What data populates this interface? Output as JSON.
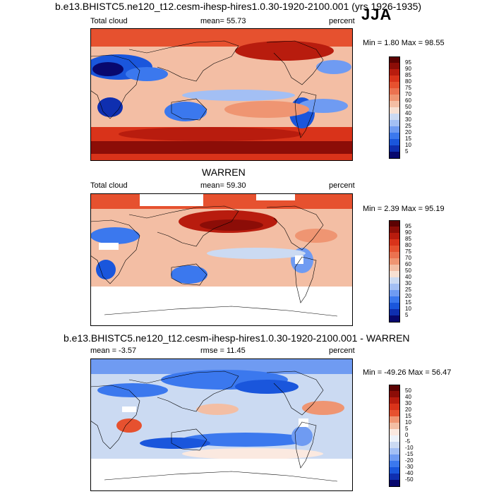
{
  "season": "JJA",
  "main_title": "b.e13.BHISTC5.ne120_t12.cesm-ihesp-hires1.0.30-1920-2100.001 (yrs 1926-1935)",
  "palette": {
    "abs": [
      "#08086e",
      "#0f2fb0",
      "#1a56dc",
      "#3b78ee",
      "#6f9bf2",
      "#a3bff4",
      "#cbdaf2",
      "#f7e0d2",
      "#f3bea4",
      "#ef9572",
      "#eb7250",
      "#e6512f",
      "#d9331a",
      "#b81c0e",
      "#8c0d07",
      "#5c0202"
    ],
    "diff": [
      "#08086e",
      "#0f2fb0",
      "#1a56dc",
      "#3b78ee",
      "#6f9bf2",
      "#a3bff4",
      "#cbdaf2",
      "#eef3fb",
      "#fbe9e0",
      "#f3bea4",
      "#ef9572",
      "#e6512f",
      "#d9331a",
      "#b81c0e",
      "#8c0d07",
      "#5c0202"
    ]
  },
  "panels": [
    {
      "id": "model",
      "heading": "",
      "left_label": "Total cloud",
      "stat_text": "mean=  55.73",
      "unit": "percent",
      "minmax": "Min =   1.80 Max =  98.55",
      "colorbar_labels": [
        "95",
        "90",
        "85",
        "80",
        "75",
        "70",
        "60",
        "50",
        "40",
        "30",
        "25",
        "20",
        "15",
        "10",
        "5"
      ],
      "chart_data": {
        "type": "heatmap",
        "title": "Total cloud",
        "units": "percent",
        "mean": 55.73,
        "min": 1.8,
        "max": 98.55,
        "season": "JJA",
        "color_levels": [
          5,
          10,
          15,
          20,
          25,
          30,
          40,
          50,
          60,
          70,
          75,
          80,
          85,
          90,
          95
        ]
      }
    },
    {
      "id": "obs",
      "heading": "WARREN",
      "left_label": "Total cloud",
      "stat_text": "mean=  59.30",
      "unit": "percent",
      "minmax": "Min =   2.39 Max =  95.19",
      "colorbar_labels": [
        "95",
        "90",
        "85",
        "80",
        "75",
        "70",
        "60",
        "50",
        "40",
        "30",
        "25",
        "20",
        "15",
        "10",
        "5"
      ],
      "chart_data": {
        "type": "heatmap",
        "title": "WARREN Total cloud",
        "units": "percent",
        "mean": 59.3,
        "min": 2.39,
        "max": 95.19,
        "season": "JJA",
        "color_levels": [
          5,
          10,
          15,
          20,
          25,
          30,
          40,
          50,
          60,
          70,
          75,
          80,
          85,
          90,
          95
        ]
      }
    },
    {
      "id": "diff",
      "heading": "b.e13.BHISTC5.ne120_t12.cesm-ihesp-hires1.0.30-1920-2100.001 - WARREN",
      "left_label": "mean =  -3.57",
      "stat_text": "rmse =  11.45",
      "unit": "percent",
      "minmax": "Min = -49.26 Max =  56.47",
      "colorbar_labels": [
        "50",
        "40",
        "30",
        "20",
        "15",
        "10",
        "5",
        "0",
        "-5",
        "-10",
        "-15",
        "-20",
        "-30",
        "-40",
        "-50"
      ],
      "chart_data": {
        "type": "heatmap",
        "title": "Model minus WARREN",
        "units": "percent",
        "mean": -3.57,
        "rmse": 11.45,
        "min": -49.26,
        "max": 56.47,
        "season": "JJA",
        "color_levels": [
          -50,
          -40,
          -30,
          -20,
          -15,
          -10,
          -5,
          0,
          5,
          10,
          15,
          20,
          30,
          40,
          50
        ]
      }
    }
  ]
}
